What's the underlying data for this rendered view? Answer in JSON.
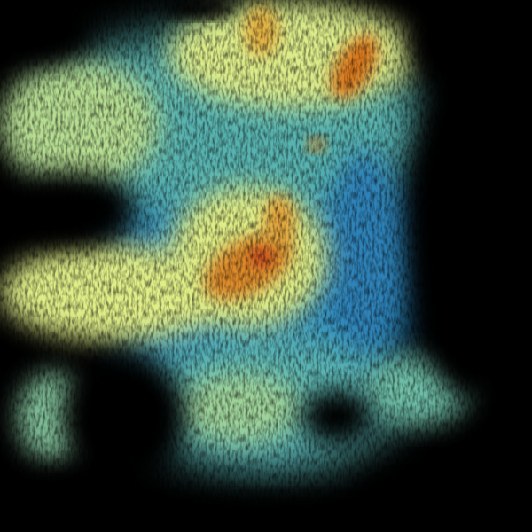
{
  "image": {
    "subject": "weather-radar-reflectivity-sweep",
    "background_color": "#000000",
    "palette": {
      "low": "#1f6fb2",
      "low_mid": "#3a9fc0",
      "mid": "#7cc8a4",
      "mid_high": "#e6ef88",
      "high": "#e9c24a",
      "very_high": "#d9781e",
      "peak": "#c0301a"
    }
  }
}
